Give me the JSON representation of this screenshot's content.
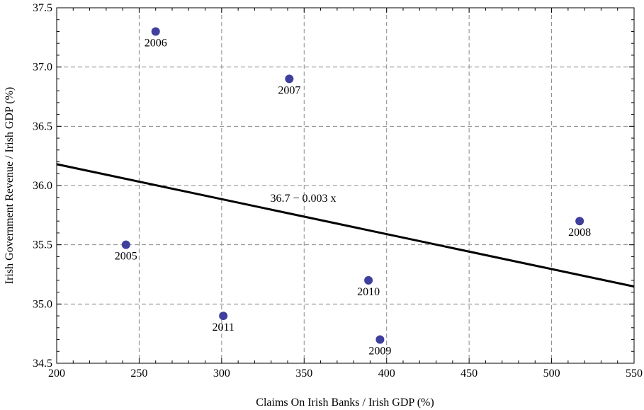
{
  "chart_data": {
    "type": "scatter",
    "xlabel": "Claims On Irish Banks / Irish GDP (%)",
    "ylabel": "Irish Government Revenue / Irish GDP (%)",
    "xlim": [
      200,
      550
    ],
    "ylim": [
      34.5,
      37.5
    ],
    "x_ticks": [
      200,
      250,
      300,
      350,
      400,
      450,
      500,
      550
    ],
    "y_ticks": [
      34.5,
      35.0,
      35.5,
      36.0,
      36.5,
      37.0,
      37.5
    ],
    "x_tick_labels": [
      "200",
      "250",
      "300",
      "350",
      "400",
      "450",
      "500",
      "550"
    ],
    "y_tick_labels": [
      "34.5",
      "35.0",
      "35.5",
      "36.0",
      "36.5",
      "37.0",
      "37.5"
    ],
    "grid": true,
    "point_color": "#3f3f9e",
    "points": [
      {
        "label": "2005",
        "x": 242,
        "y": 35.5
      },
      {
        "label": "2006",
        "x": 260,
        "y": 37.3
      },
      {
        "label": "2007",
        "x": 341,
        "y": 36.9
      },
      {
        "label": "2008",
        "x": 517,
        "y": 35.7
      },
      {
        "label": "2009",
        "x": 396,
        "y": 34.7
      },
      {
        "label": "2010",
        "x": 389,
        "y": 35.2
      },
      {
        "label": "2011",
        "x": 301,
        "y": 34.9
      }
    ],
    "fit_line": {
      "label": "36.7 − 0.003 x",
      "intercept": 36.77,
      "slope": -0.00295
    }
  }
}
